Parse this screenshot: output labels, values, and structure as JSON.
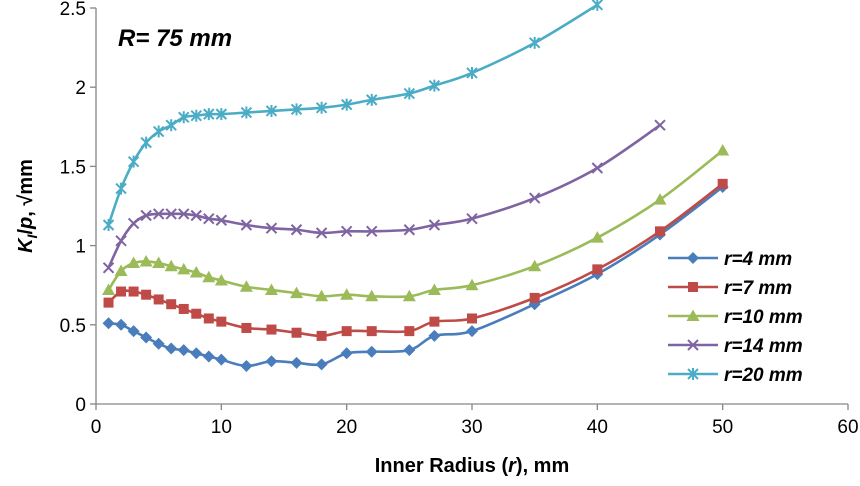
{
  "chart_data": {
    "type": "line",
    "annotation": "R= 75 mm",
    "xlabel_parts": [
      "Inner Radius (",
      "r",
      "), mm"
    ],
    "ylabel_parts": [
      "K",
      "I",
      "/",
      "p",
      ", √mm"
    ],
    "xlim": [
      0,
      60
    ],
    "ylim": [
      0,
      2.5
    ],
    "x_ticks": [
      0,
      10,
      20,
      30,
      40,
      50,
      60
    ],
    "y_ticks": [
      0,
      0.5,
      1,
      1.5,
      2,
      2.5
    ],
    "y_tick_labels": [
      "0",
      "0.5",
      "1",
      "1.5",
      "2",
      "2.5"
    ],
    "grid": false,
    "legend_position": "right",
    "series": [
      {
        "name": "r=4 mm",
        "color": "#4a7dbb",
        "marker": "diamond",
        "x": [
          1,
          2,
          3,
          4,
          5,
          6,
          7,
          8,
          9,
          10,
          12,
          14,
          16,
          18,
          20,
          22,
          25,
          27,
          30,
          35,
          40,
          45,
          50
        ],
        "y": [
          0.51,
          0.5,
          0.46,
          0.42,
          0.38,
          0.35,
          0.34,
          0.32,
          0.3,
          0.28,
          0.24,
          0.27,
          0.26,
          0.25,
          0.32,
          0.33,
          0.34,
          0.43,
          0.46,
          0.63,
          0.82,
          1.07,
          1.37
        ]
      },
      {
        "name": "r=7 mm",
        "color": "#be4b48",
        "marker": "square",
        "x": [
          1,
          2,
          3,
          4,
          5,
          6,
          7,
          8,
          9,
          10,
          12,
          14,
          16,
          18,
          20,
          22,
          25,
          27,
          30,
          35,
          40,
          45,
          50
        ],
        "y": [
          0.64,
          0.71,
          0.71,
          0.69,
          0.66,
          0.63,
          0.6,
          0.57,
          0.54,
          0.52,
          0.48,
          0.47,
          0.45,
          0.43,
          0.46,
          0.46,
          0.46,
          0.52,
          0.54,
          0.67,
          0.85,
          1.09,
          1.39
        ]
      },
      {
        "name": "r=10 mm",
        "color": "#9bbb59",
        "marker": "triangle",
        "x": [
          1,
          2,
          3,
          4,
          5,
          6,
          7,
          8,
          9,
          10,
          12,
          14,
          16,
          18,
          20,
          22,
          25,
          27,
          30,
          35,
          40,
          45,
          50
        ],
        "y": [
          0.72,
          0.84,
          0.89,
          0.9,
          0.89,
          0.87,
          0.85,
          0.83,
          0.8,
          0.78,
          0.74,
          0.72,
          0.7,
          0.68,
          0.69,
          0.68,
          0.68,
          0.72,
          0.75,
          0.87,
          1.05,
          1.29,
          1.6
        ]
      },
      {
        "name": "r=14 mm",
        "color": "#7f64a2",
        "marker": "cross",
        "x": [
          1,
          2,
          3,
          4,
          5,
          6,
          7,
          8,
          9,
          10,
          12,
          14,
          16,
          18,
          20,
          22,
          25,
          27,
          30,
          35,
          40,
          45
        ],
        "y": [
          0.86,
          1.03,
          1.14,
          1.19,
          1.2,
          1.2,
          1.2,
          1.19,
          1.17,
          1.16,
          1.13,
          1.11,
          1.1,
          1.08,
          1.09,
          1.09,
          1.1,
          1.13,
          1.17,
          1.3,
          1.49,
          1.76
        ]
      },
      {
        "name": "r=20 mm",
        "color": "#4bacc6",
        "marker": "star",
        "x": [
          1,
          2,
          3,
          4,
          5,
          6,
          7,
          8,
          9,
          10,
          12,
          14,
          16,
          18,
          20,
          22,
          25,
          27,
          30,
          35,
          40
        ],
        "y": [
          1.13,
          1.36,
          1.53,
          1.65,
          1.72,
          1.76,
          1.81,
          1.82,
          1.83,
          1.83,
          1.84,
          1.85,
          1.86,
          1.87,
          1.89,
          1.92,
          1.96,
          2.01,
          2.09,
          2.28,
          2.52
        ]
      }
    ]
  }
}
